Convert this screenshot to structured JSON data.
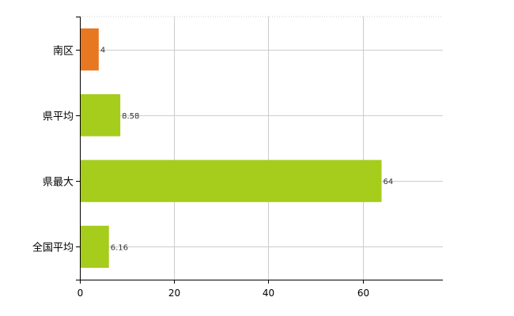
{
  "chart_data": {
    "type": "bar",
    "orientation": "horizontal",
    "categories": [
      "南区",
      "県平均",
      "県最大",
      "全国平均"
    ],
    "values": [
      4,
      8.58,
      64,
      6.16
    ],
    "value_labels": [
      "4",
      "8.58",
      "64",
      "6.16"
    ],
    "xlim": [
      0,
      77
    ],
    "xticks": [
      0,
      20,
      40,
      60
    ],
    "xtick_labels": [
      "0",
      "20",
      "40",
      "60"
    ],
    "grid": true,
    "legend": "none",
    "colors": {
      "highlight": "#e87722",
      "default": "#a6cc1c",
      "grid": "#cccccc",
      "axis": "#000000"
    },
    "highlight_index": 0
  }
}
